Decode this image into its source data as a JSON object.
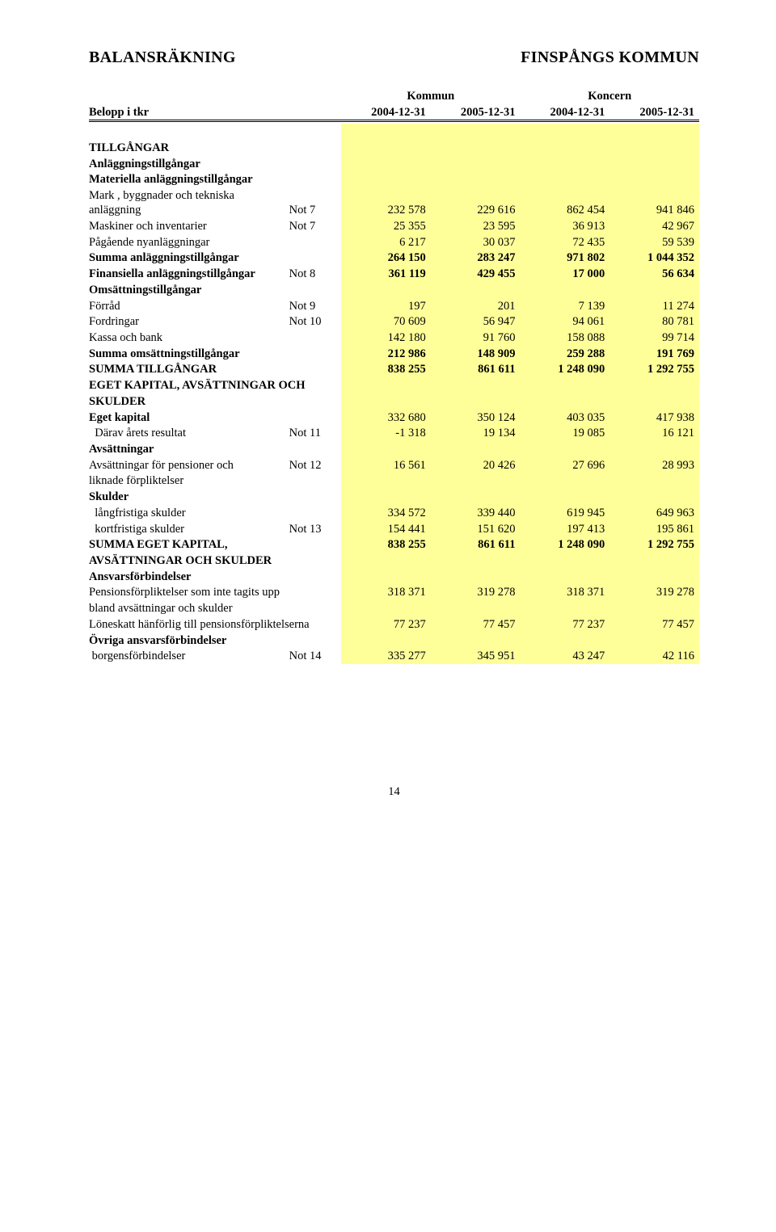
{
  "header": {
    "left": "BALANSRÄKNING",
    "right": "FINSPÅNGS KOMMUN"
  },
  "groups": {
    "kommun": "Kommun",
    "koncern": "Koncern"
  },
  "col0": "Belopp i tkr",
  "dates": [
    "2004-12-31",
    "2005-12-31",
    "2004-12-31",
    "2005-12-31"
  ],
  "labels": {
    "tillgangar": "TILLGÅNGAR",
    "anlagg": "Anläggningstillgångar",
    "materiella": "Materiella anläggningstillgångar",
    "mark": "Mark , byggnader och tekniska anläggning",
    "maskiner": "Maskiner och inventarier",
    "nyan": "Pågående nyanläggningar",
    "summa_anlagg": "Summa anläggningstillgångar",
    "finansiella": "Finansiella anläggningstillgångar",
    "omsattning_hdr": "Omsättningstillgångar",
    "forrad": "Förråd",
    "fordringar": "Fordringar",
    "kassa": "Kassa och bank",
    "summa_oms": "Summa omsättningstillgångar",
    "summa_tillg": "SUMMA TILLGÅNGAR",
    "eget_hdr1": "EGET KAPITAL, AVSÄTTNINGAR OCH",
    "eget_hdr2": "SKULDER",
    "eget_kap": "Eget kapital",
    "darav": "  Därav årets resultat",
    "avs_hdr": "Avsättningar",
    "avs_pens1": "Avsättningar för pensioner och",
    "avs_pens2": "liknade förpliktelser",
    "skulder_hdr": "Skulder",
    "langfr": "  långfristiga skulder",
    "kortfr": "  kortfristiga skulder",
    "summa_eget1": "SUMMA EGET KAPITAL,",
    "summa_eget2": "AVSÄTTNINGAR OCH SKULDER",
    "ansvar_hdr": "Ansvarsförbindelser",
    "pens_forpl1": "Pensionsförpliktelser som inte tagits upp",
    "pens_forpl2": "bland avsättningar och skulder",
    "loneskatt": "Löneskatt hänförlig till pensionsförpliktelserna",
    "ovriga_hdr": "Övriga ansvarsförbindelser",
    "borgen": " borgensförbindelser"
  },
  "notes": {
    "n7": "Not 7",
    "n8": "Not 8",
    "n9": "Not 9",
    "n10": "Not 10",
    "n11": "Not 11",
    "n12": "Not 12",
    "n13": "Not 13",
    "n14": "Not 14"
  },
  "rows": {
    "mark": [
      "232 578",
      "229 616",
      "862 454",
      "941 846"
    ],
    "maskiner": [
      "25 355",
      "23 595",
      "36 913",
      "42 967"
    ],
    "nyan": [
      "6 217",
      "30 037",
      "72 435",
      "59 539"
    ],
    "summa_anlagg": [
      "264 150",
      "283 247",
      "971 802",
      "1 044 352"
    ],
    "finansiella": [
      "361 119",
      "429 455",
      "17 000",
      "56 634"
    ],
    "forrad": [
      "197",
      "201",
      "7 139",
      "11 274"
    ],
    "fordringar": [
      "70 609",
      "56 947",
      "94 061",
      "80 781"
    ],
    "kassa": [
      "142 180",
      "91 760",
      "158 088",
      "99 714"
    ],
    "summa_oms": [
      "212 986",
      "148 909",
      "259 288",
      "191 769"
    ],
    "summa_tillg": [
      "838 255",
      "861 611",
      "1 248 090",
      "1 292 755"
    ],
    "eget_kap": [
      "332 680",
      "350 124",
      "403 035",
      "417 938"
    ],
    "darav": [
      "-1 318",
      "19 134",
      "19 085",
      "16 121"
    ],
    "avs_pens": [
      "16 561",
      "20 426",
      "27 696",
      "28 993"
    ],
    "langfr": [
      "334 572",
      "339 440",
      "619 945",
      "649 963"
    ],
    "kortfr": [
      "154 441",
      "151 620",
      "197 413",
      "195 861"
    ],
    "summa_eget": [
      "838 255",
      "861 611",
      "1 248 090",
      "1 292 755"
    ],
    "pens_forpl": [
      "318 371",
      "319 278",
      "318 371",
      "319 278"
    ],
    "loneskatt": [
      "77 237",
      "77 457",
      "77 237",
      "77 457"
    ],
    "borgen": [
      "335 277",
      "345 951",
      "43 247",
      "42 116"
    ]
  },
  "colors": {
    "highlight": "#ffff99"
  },
  "pagenum": "14"
}
